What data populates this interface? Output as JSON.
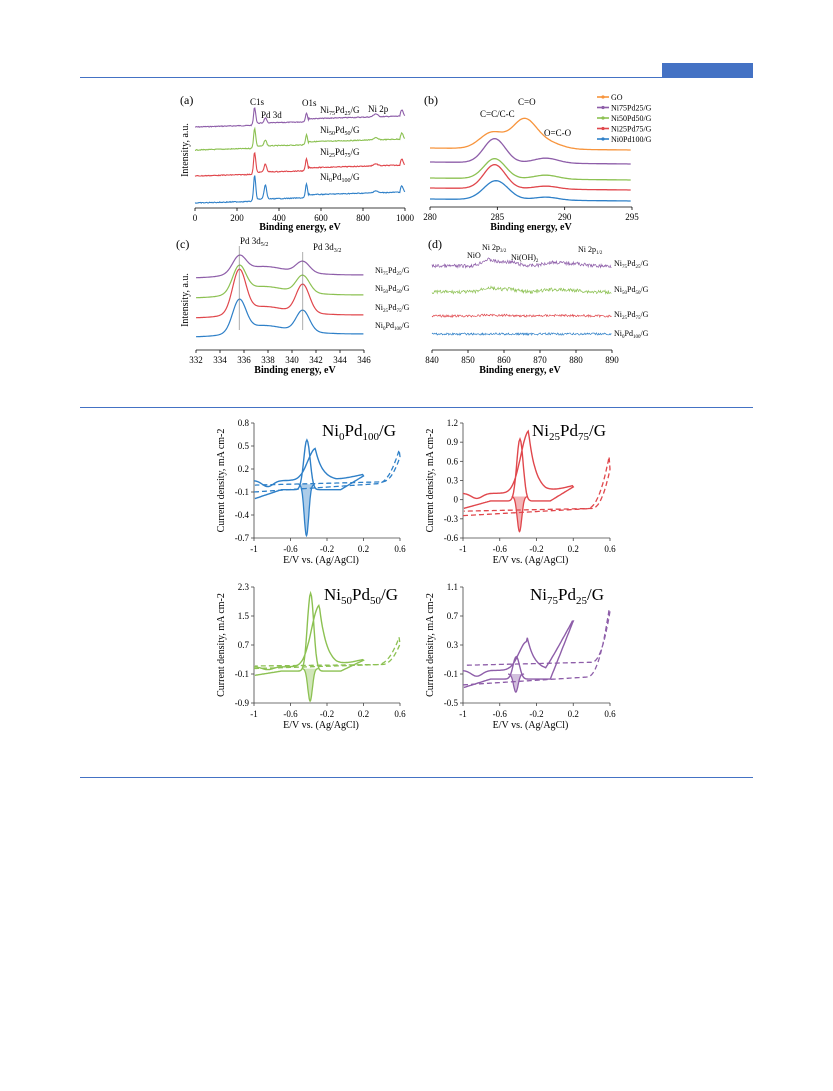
{
  "colors": {
    "rule": "#4472c4",
    "blue": "#2f80c8",
    "red": "#e0474c",
    "green": "#8cc152",
    "purple": "#8e5ea9",
    "orange": "#f7943c"
  },
  "panels": [
    {
      "id": "a",
      "tag": "(a)",
      "xlabel": "Binding energy, eV",
      "ylabel": "Intensity, a.u.",
      "xlim": [
        0,
        1000
      ],
      "xticks": [
        "0",
        "200",
        "400",
        "600",
        "800",
        "1000"
      ],
      "annotations": [
        "C1s",
        "Pd 3d",
        "O1s",
        "Ni 2p"
      ],
      "series": [
        {
          "name": "Ni75Pd25/G",
          "color": "purple"
        },
        {
          "name": "Ni50Pd50/G",
          "color": "green"
        },
        {
          "name": "Ni25Pd75/G",
          "color": "red"
        },
        {
          "name": "Ni0Pd100/G",
          "color": "blue"
        }
      ]
    },
    {
      "id": "b",
      "tag": "(b)",
      "xlabel": "Binding energy, eV",
      "xlim": [
        280,
        295
      ],
      "xticks": [
        "280",
        "285",
        "290",
        "295"
      ],
      "annotations": [
        "C=C/C-C",
        "C=O",
        "O=C-O"
      ],
      "legend": [
        "GO",
        "Ni75Pd25/G",
        "Ni50Pd50/G",
        "Ni25Pd75/G",
        "Ni0Pd100/G"
      ],
      "series": [
        {
          "name": "GO",
          "color": "orange"
        },
        {
          "name": "Ni75Pd25/G",
          "color": "purple"
        },
        {
          "name": "Ni50Pd50/G",
          "color": "green"
        },
        {
          "name": "Ni25Pd75/G",
          "color": "red"
        },
        {
          "name": "Ni0Pd100/G",
          "color": "blue"
        }
      ]
    },
    {
      "id": "c",
      "tag": "(c)",
      "xlabel": "Binding energy, eV",
      "ylabel": "Intensity, a.u.",
      "xlim": [
        332,
        346
      ],
      "xticks": [
        "332",
        "334",
        "336",
        "338",
        "340",
        "342",
        "344",
        "346"
      ],
      "annotations": [
        "Pd 3d5/2",
        "Pd 3d3/2"
      ],
      "series": [
        {
          "name": "Ni75Pd25/G",
          "color": "purple"
        },
        {
          "name": "Ni50Pd50/G",
          "color": "green"
        },
        {
          "name": "Ni25Pd75/G",
          "color": "red"
        },
        {
          "name": "Ni0Pd100/G",
          "color": "blue"
        }
      ]
    },
    {
      "id": "d",
      "tag": "(d)",
      "xlabel": "Binding energy, eV",
      "xlim": [
        840,
        890
      ],
      "xticks": [
        "840",
        "850",
        "860",
        "870",
        "880",
        "890"
      ],
      "annotations": [
        "NiO",
        "Ni 2p3/2",
        "Ni(OH)2",
        "Ni 2p1/2"
      ],
      "series": [
        {
          "name": "Ni75Pd25/G",
          "color": "purple"
        },
        {
          "name": "Ni50Pd50/G",
          "color": "green"
        },
        {
          "name": "Ni25Pd75/G",
          "color": "red"
        },
        {
          "name": "Ni0Pd100/G",
          "color": "blue"
        }
      ]
    }
  ],
  "cv_panels": [
    {
      "title": "Ni0Pd100/G",
      "color": "blue",
      "ylabel": "Current density, mA cm-2",
      "xlabel": "E/V vs. (Ag/AgCl)",
      "ylim": [
        -0.7,
        0.8
      ],
      "yticks": [
        "0.8",
        "0.5",
        "0.2",
        "-0.1",
        "-0.4",
        "-0.7"
      ],
      "xlim": [
        -1,
        0.6
      ],
      "xticks": [
        "-1",
        "-0.6",
        "-0.2",
        "0.2",
        "0.6"
      ]
    },
    {
      "title": "Ni25Pd75/G",
      "color": "red",
      "ylabel": "Current density, mA cm-2",
      "xlabel": "E/V vs. (Ag/AgCl)",
      "ylim": [
        -0.6,
        1.2
      ],
      "yticks": [
        "1.2",
        "0.9",
        "0.6",
        "0.3",
        "0",
        "-0.3",
        "-0.6"
      ],
      "xlim": [
        -1,
        0.6
      ],
      "xticks": [
        "-1",
        "-0.6",
        "-0.2",
        "0.2",
        "0.6"
      ]
    },
    {
      "title": "Ni50Pd50/G",
      "color": "green",
      "ylabel": "Current density, mA cm-2",
      "xlabel": "E/V vs. (Ag/AgCl)",
      "ylim": [
        -0.9,
        2.3
      ],
      "yticks": [
        "2.3",
        "1.5",
        "0.7",
        "-0.1",
        "-0.9"
      ],
      "xlim": [
        -1,
        0.6
      ],
      "xticks": [
        "-1",
        "-0.6",
        "-0.2",
        "0.2",
        "0.6"
      ]
    },
    {
      "title": "Ni75Pd25/G",
      "color": "purple",
      "ylabel": "Current density, mA cm-2",
      "xlabel": "E/V vs. (Ag/AgCl)",
      "ylim": [
        -0.5,
        1.1
      ],
      "yticks": [
        "1.1",
        "0.7",
        "0.3",
        "-0.1",
        "-0.5"
      ],
      "xlim": [
        -1,
        0.6
      ],
      "xticks": [
        "-1",
        "-0.6",
        "-0.2",
        "0.2",
        "0.6"
      ]
    }
  ]
}
